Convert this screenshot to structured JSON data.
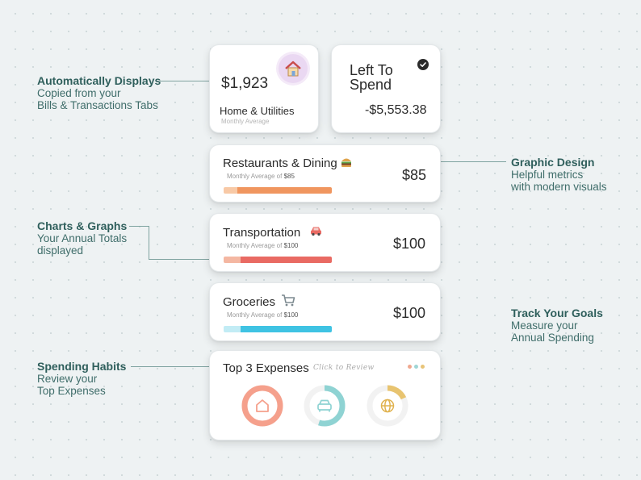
{
  "annotations": {
    "auto": {
      "heading": "Automatically Displays",
      "line1": "Copied from your",
      "line2": "Bills & Transactions Tabs"
    },
    "charts": {
      "heading": "Charts & Graphs",
      "line1": "Your Annual Totals",
      "line2": "displayed"
    },
    "spending": {
      "heading": "Spending Habits",
      "line1": "Review your",
      "line2": "Top Expenses"
    },
    "design": {
      "heading": "Graphic Design",
      "line1": "Helpful metrics",
      "line2": "with modern visuals"
    },
    "goals": {
      "heading": "Track Your Goals",
      "line1": "Measure your",
      "line2": "Annual Spending"
    }
  },
  "home_card": {
    "amount": "$1,923",
    "title": "Home & Utilities",
    "subtitle": "Monthly Average",
    "icon": "house-icon"
  },
  "left_card": {
    "line1": "Left To",
    "line2": "Spend",
    "amount": "-$5,553.38",
    "icon": "check-circle-icon"
  },
  "categories": [
    {
      "title": "Restaurants & Dining",
      "icon": "burger-icon",
      "sub_label": "Monthly Average of",
      "sub_value": "$85",
      "amount": "$85",
      "color": "#f0965f",
      "light": "#f8c9a6"
    },
    {
      "title": "Transportation",
      "icon": "car-icon",
      "sub_label": "Monthly Average of",
      "sub_value": "$100",
      "amount": "$100",
      "color": "#e96a63",
      "light": "#f4b7a2"
    },
    {
      "title": "Groceries",
      "icon": "cart-icon",
      "sub_label": "Monthly Average of",
      "sub_value": "$100",
      "amount": "$100",
      "color": "#3fc3e3",
      "light": "#c2ecf5"
    }
  ],
  "top3": {
    "title": "Top 3 Expenses",
    "link": "Click to Review",
    "menu_dot_colors": [
      "#f0a890",
      "#9fd6d6",
      "#e8c478"
    ],
    "rings": [
      {
        "icon": "house-outline-icon",
        "fraction": 1.0,
        "color": "#f5a08c"
      },
      {
        "icon": "car-outline-icon",
        "fraction": 0.55,
        "color": "#8fd3d3"
      },
      {
        "icon": "globe-outline-icon",
        "fraction": 0.18,
        "color": "#e8c470"
      }
    ]
  }
}
